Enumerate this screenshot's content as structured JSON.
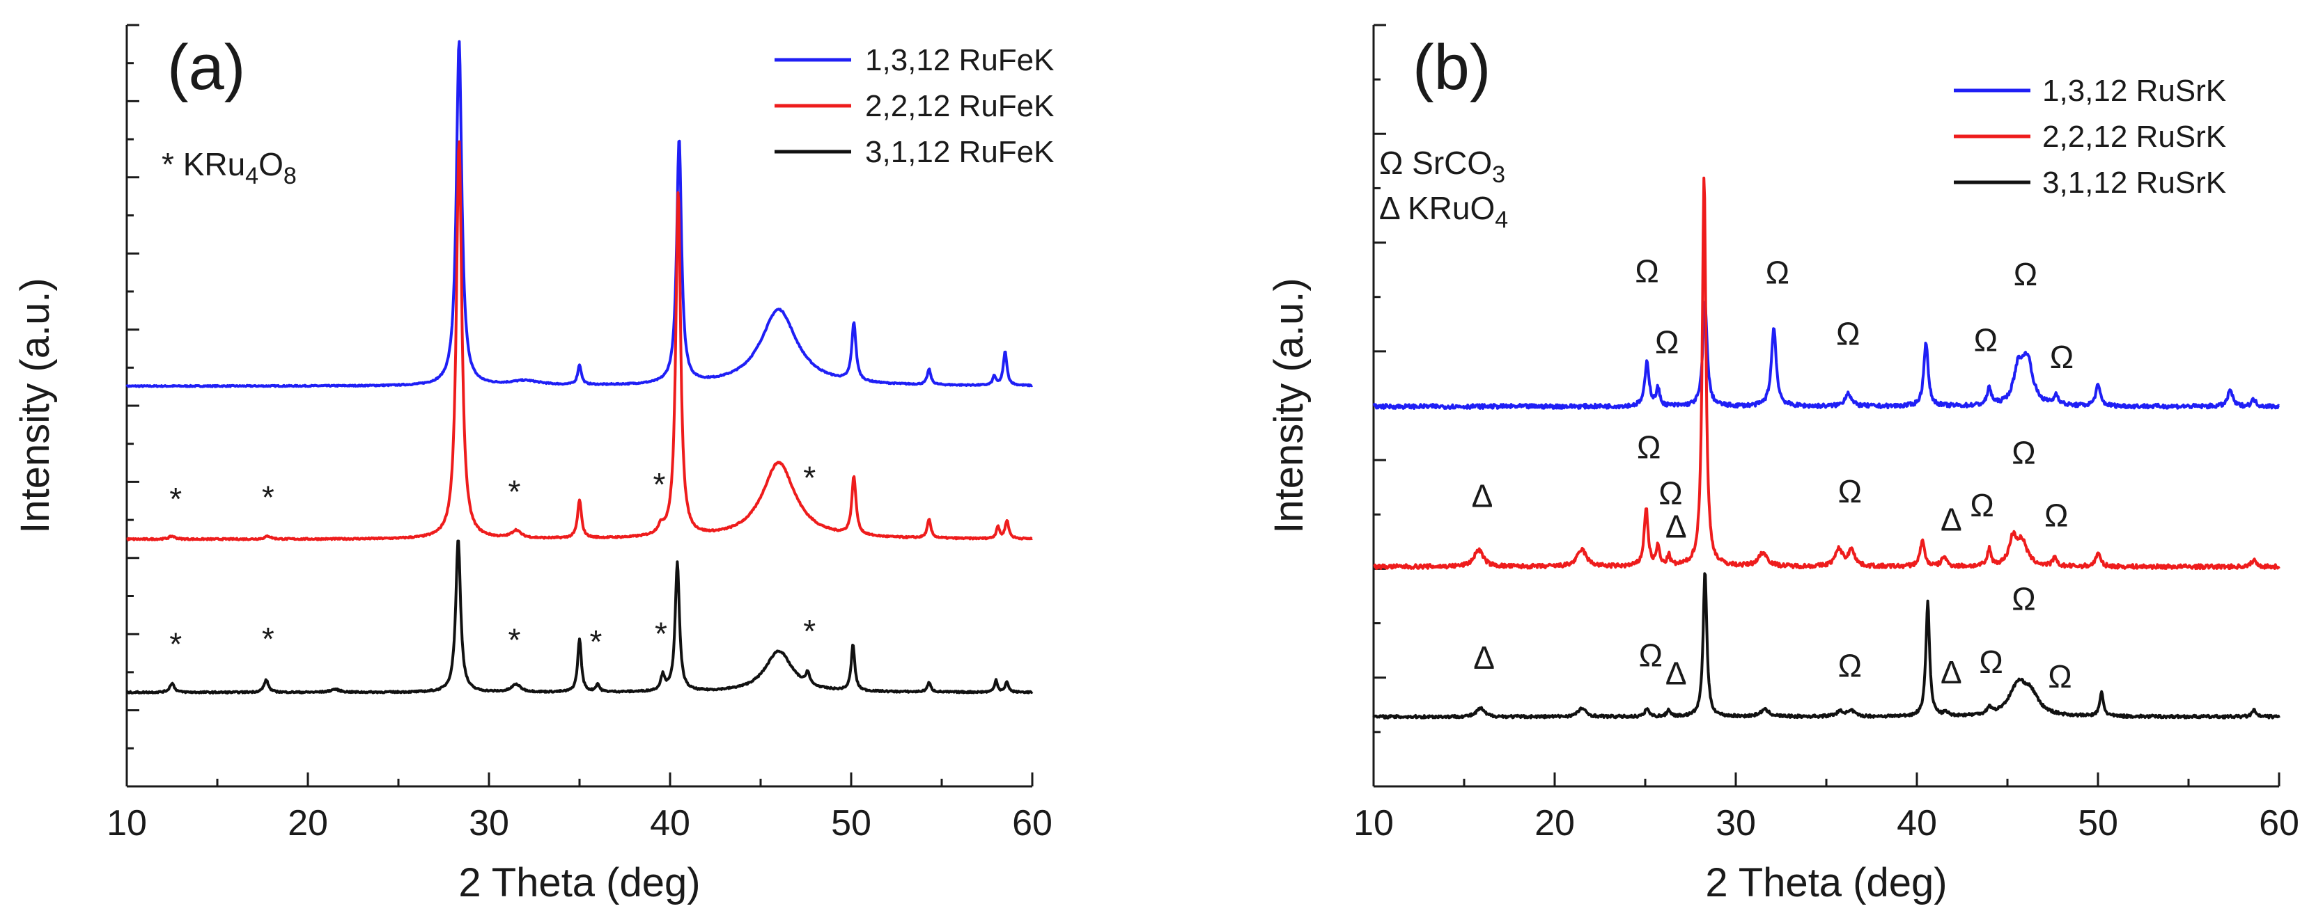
{
  "chart_data": [
    {
      "panel_label": "(a)",
      "type": "line",
      "xlabel": "2 Theta (deg)",
      "ylabel": "Intensity (a.u.)",
      "xlim": [
        10,
        60
      ],
      "x_ticks": [
        "10",
        "20",
        "30",
        "40",
        "50",
        "60"
      ],
      "y_tick_labels_shown": false,
      "legend_position": "top-right",
      "phase_legend": [
        {
          "symbol": "*",
          "label": "KRu",
          "sub1": "4",
          "mid": "O",
          "sub2": "8"
        }
      ],
      "series": [
        {
          "name": "1,3,12 RuFeK",
          "color": "#1f1ff5",
          "offset": 2.0,
          "baseline": 0.0,
          "noise": 0.004,
          "peaks": [
            [
              28.35,
              2.25,
              0.18
            ],
            [
              40.5,
              1.6,
              0.16
            ],
            [
              35.0,
              0.13,
              0.12
            ],
            [
              46.0,
              0.5,
              1.2
            ],
            [
              50.15,
              0.38,
              0.14
            ],
            [
              54.3,
              0.1,
              0.12
            ],
            [
              58.5,
              0.22,
              0.12
            ],
            [
              57.9,
              0.06,
              0.1
            ],
            [
              32.0,
              0.03,
              1.0
            ]
          ],
          "markers": []
        },
        {
          "name": "2,2,12 RuFeK",
          "color": "#ee1c1c",
          "offset": 1.0,
          "baseline": 0.0,
          "noise": 0.005,
          "peaks": [
            [
              28.35,
              2.6,
              0.18
            ],
            [
              40.45,
              2.25,
              0.16
            ],
            [
              35.0,
              0.25,
              0.13
            ],
            [
              46.0,
              0.5,
              1.1
            ],
            [
              50.15,
              0.38,
              0.14
            ],
            [
              54.3,
              0.12,
              0.12
            ],
            [
              58.1,
              0.08,
              0.1
            ],
            [
              58.6,
              0.12,
              0.12
            ],
            [
              31.5,
              0.05,
              0.3
            ],
            [
              39.5,
              0.05,
              0.2
            ],
            [
              12.5,
              0.02,
              0.2
            ],
            [
              17.8,
              0.02,
              0.2
            ]
          ],
          "markers": [
            {
              "symbol": "*",
              "x": 12.7,
              "y": 0.18
            },
            {
              "symbol": "*",
              "x": 17.8,
              "y": 0.18
            },
            {
              "symbol": "*",
              "x": 31.4,
              "y": 0.18
            },
            {
              "symbol": "*",
              "x": 39.4,
              "y": 0.18
            },
            {
              "symbol": "*",
              "x": 47.7,
              "y": 0.18
            }
          ]
        },
        {
          "name": "3,1,12 RuFeK",
          "color": "#111111",
          "offset": 0.0,
          "baseline": 0.0,
          "noise": 0.005,
          "peaks": [
            [
              28.3,
              1.0,
              0.16
            ],
            [
              40.4,
              0.84,
              0.14
            ],
            [
              35.0,
              0.35,
              0.12
            ],
            [
              36.0,
              0.05,
              0.12
            ],
            [
              39.6,
              0.1,
              0.14
            ],
            [
              46.0,
              0.27,
              0.9
            ],
            [
              47.6,
              0.08,
              0.12
            ],
            [
              50.1,
              0.3,
              0.12
            ],
            [
              54.3,
              0.06,
              0.12
            ],
            [
              58.0,
              0.08,
              0.1
            ],
            [
              58.6,
              0.07,
              0.1
            ],
            [
              12.5,
              0.06,
              0.15
            ],
            [
              17.7,
              0.08,
              0.15
            ],
            [
              21.5,
              0.02,
              0.3
            ],
            [
              31.5,
              0.05,
              0.3
            ]
          ],
          "markers": [
            {
              "symbol": "*",
              "x": 12.7,
              "y": 0.22
            },
            {
              "symbol": "*",
              "x": 17.8,
              "y": 0.22
            },
            {
              "symbol": "*",
              "x": 31.4,
              "y": 0.22
            },
            {
              "symbol": "*",
              "x": 35.9,
              "y": 0.22
            },
            {
              "symbol": "*",
              "x": 39.5,
              "y": 0.22
            },
            {
              "symbol": "*",
              "x": 47.7,
              "y": 0.22
            }
          ]
        }
      ]
    },
    {
      "panel_label": "(b)",
      "type": "line",
      "xlabel": "2 Theta (deg)",
      "ylabel": "Intensity (a.u.)",
      "xlim": [
        10,
        60
      ],
      "x_ticks": [
        "10",
        "20",
        "30",
        "40",
        "50",
        "60"
      ],
      "y_tick_labels_shown": false,
      "legend_position": "top-right",
      "phase_legend": [
        {
          "symbol": "Ω",
          "label": "SrCO",
          "sub1": "3",
          "mid": "",
          "sub2": ""
        },
        {
          "symbol": "Δ",
          "label": "KRuO",
          "sub1": "4",
          "mid": "",
          "sub2": ""
        }
      ],
      "series": [
        {
          "name": "1,3,12 RuSrK",
          "color": "#1f1ff5",
          "offset": 1.82,
          "baseline": 0.0,
          "noise": 0.012,
          "peaks": [
            [
              25.1,
              0.26,
              0.14
            ],
            [
              25.7,
              0.1,
              0.12
            ],
            [
              28.3,
              0.62,
              0.14
            ],
            [
              32.1,
              0.46,
              0.16
            ],
            [
              36.2,
              0.08,
              0.2
            ],
            [
              40.5,
              0.38,
              0.14
            ],
            [
              44.0,
              0.1,
              0.14
            ],
            [
              45.6,
              0.2,
              0.3
            ],
            [
              46.1,
              0.26,
              0.35
            ],
            [
              47.7,
              0.06,
              0.15
            ],
            [
              50.0,
              0.12,
              0.16
            ],
            [
              57.3,
              0.1,
              0.15
            ],
            [
              58.6,
              0.04,
              0.15
            ]
          ],
          "markers": [
            {
              "symbol": "Ω",
              "x": 25.1,
              "y": 0.48
            },
            {
              "symbol": "Ω",
              "x": 26.2,
              "y": 0.3
            },
            {
              "symbol": "Ω",
              "x": 32.3,
              "y": 0.54
            },
            {
              "symbol": "Ω",
              "x": 36.2,
              "y": 0.28
            },
            {
              "symbol": "Ω",
              "x": 43.8,
              "y": 0.28
            },
            {
              "symbol": "Ω",
              "x": 46.0,
              "y": 0.46
            },
            {
              "symbol": "Ω",
              "x": 48.0,
              "y": 0.2
            }
          ]
        },
        {
          "name": "2,2,12 RuSrK",
          "color": "#ee1c1c",
          "offset": 0.88,
          "baseline": 0.0,
          "noise": 0.012,
          "peaks": [
            [
              28.25,
              2.3,
              0.12
            ],
            [
              25.05,
              0.34,
              0.13
            ],
            [
              25.7,
              0.12,
              0.1
            ],
            [
              26.3,
              0.06,
              0.1
            ],
            [
              15.8,
              0.1,
              0.3
            ],
            [
              21.5,
              0.1,
              0.3
            ],
            [
              31.5,
              0.08,
              0.3
            ],
            [
              35.7,
              0.1,
              0.25
            ],
            [
              36.4,
              0.1,
              0.2
            ],
            [
              40.3,
              0.15,
              0.15
            ],
            [
              41.5,
              0.06,
              0.15
            ],
            [
              44.0,
              0.1,
              0.12
            ],
            [
              45.3,
              0.15,
              0.25
            ],
            [
              45.8,
              0.14,
              0.35
            ],
            [
              47.6,
              0.05,
              0.12
            ],
            [
              50.0,
              0.08,
              0.15
            ],
            [
              58.6,
              0.04,
              0.15
            ]
          ],
          "markers": [
            {
              "symbol": "Δ",
              "x": 16.0,
              "y": 0.28
            },
            {
              "symbol": "Ω",
              "x": 25.2,
              "y": 0.48
            },
            {
              "symbol": "Ω",
              "x": 26.4,
              "y": 0.32
            },
            {
              "symbol": "Δ",
              "x": 26.7,
              "y": 0.15
            },
            {
              "symbol": "Ω",
              "x": 36.3,
              "y": 0.28
            },
            {
              "symbol": "Δ",
              "x": 41.9,
              "y": 0.2
            },
            {
              "symbol": "Ω",
              "x": 43.6,
              "y": 0.28
            },
            {
              "symbol": "Ω",
              "x": 45.9,
              "y": 0.45
            },
            {
              "symbol": "Ω",
              "x": 47.7,
              "y": 0.2
            }
          ]
        },
        {
          "name": "3,1,12 RuSrK",
          "color": "#111111",
          "offset": 0.0,
          "baseline": 0.0,
          "noise": 0.008,
          "peaks": [
            [
              28.3,
              0.86,
              0.12
            ],
            [
              40.6,
              0.68,
              0.12
            ],
            [
              25.1,
              0.05,
              0.12
            ],
            [
              26.3,
              0.04,
              0.12
            ],
            [
              15.9,
              0.05,
              0.25
            ],
            [
              21.5,
              0.05,
              0.25
            ],
            [
              31.6,
              0.04,
              0.3
            ],
            [
              35.8,
              0.03,
              0.3
            ],
            [
              36.4,
              0.03,
              0.2
            ],
            [
              41.6,
              0.02,
              0.15
            ],
            [
              44.0,
              0.04,
              0.14
            ],
            [
              45.6,
              0.18,
              0.6
            ],
            [
              46.3,
              0.1,
              0.5
            ],
            [
              50.2,
              0.14,
              0.12
            ],
            [
              58.6,
              0.04,
              0.12
            ]
          ],
          "markers": [
            {
              "symbol": "Δ",
              "x": 16.1,
              "y": 0.25
            },
            {
              "symbol": "Ω",
              "x": 25.3,
              "y": 0.28
            },
            {
              "symbol": "Δ",
              "x": 26.7,
              "y": 0.18
            },
            {
              "symbol": "Ω",
              "x": 36.3,
              "y": 0.2
            },
            {
              "symbol": "Δ",
              "x": 41.9,
              "y": 0.18
            },
            {
              "symbol": "Ω",
              "x": 44.1,
              "y": 0.2
            },
            {
              "symbol": "Ω",
              "x": 45.9,
              "y": 0.42
            },
            {
              "symbol": "Ω",
              "x": 47.9,
              "y": 0.15
            }
          ]
        }
      ]
    }
  ]
}
